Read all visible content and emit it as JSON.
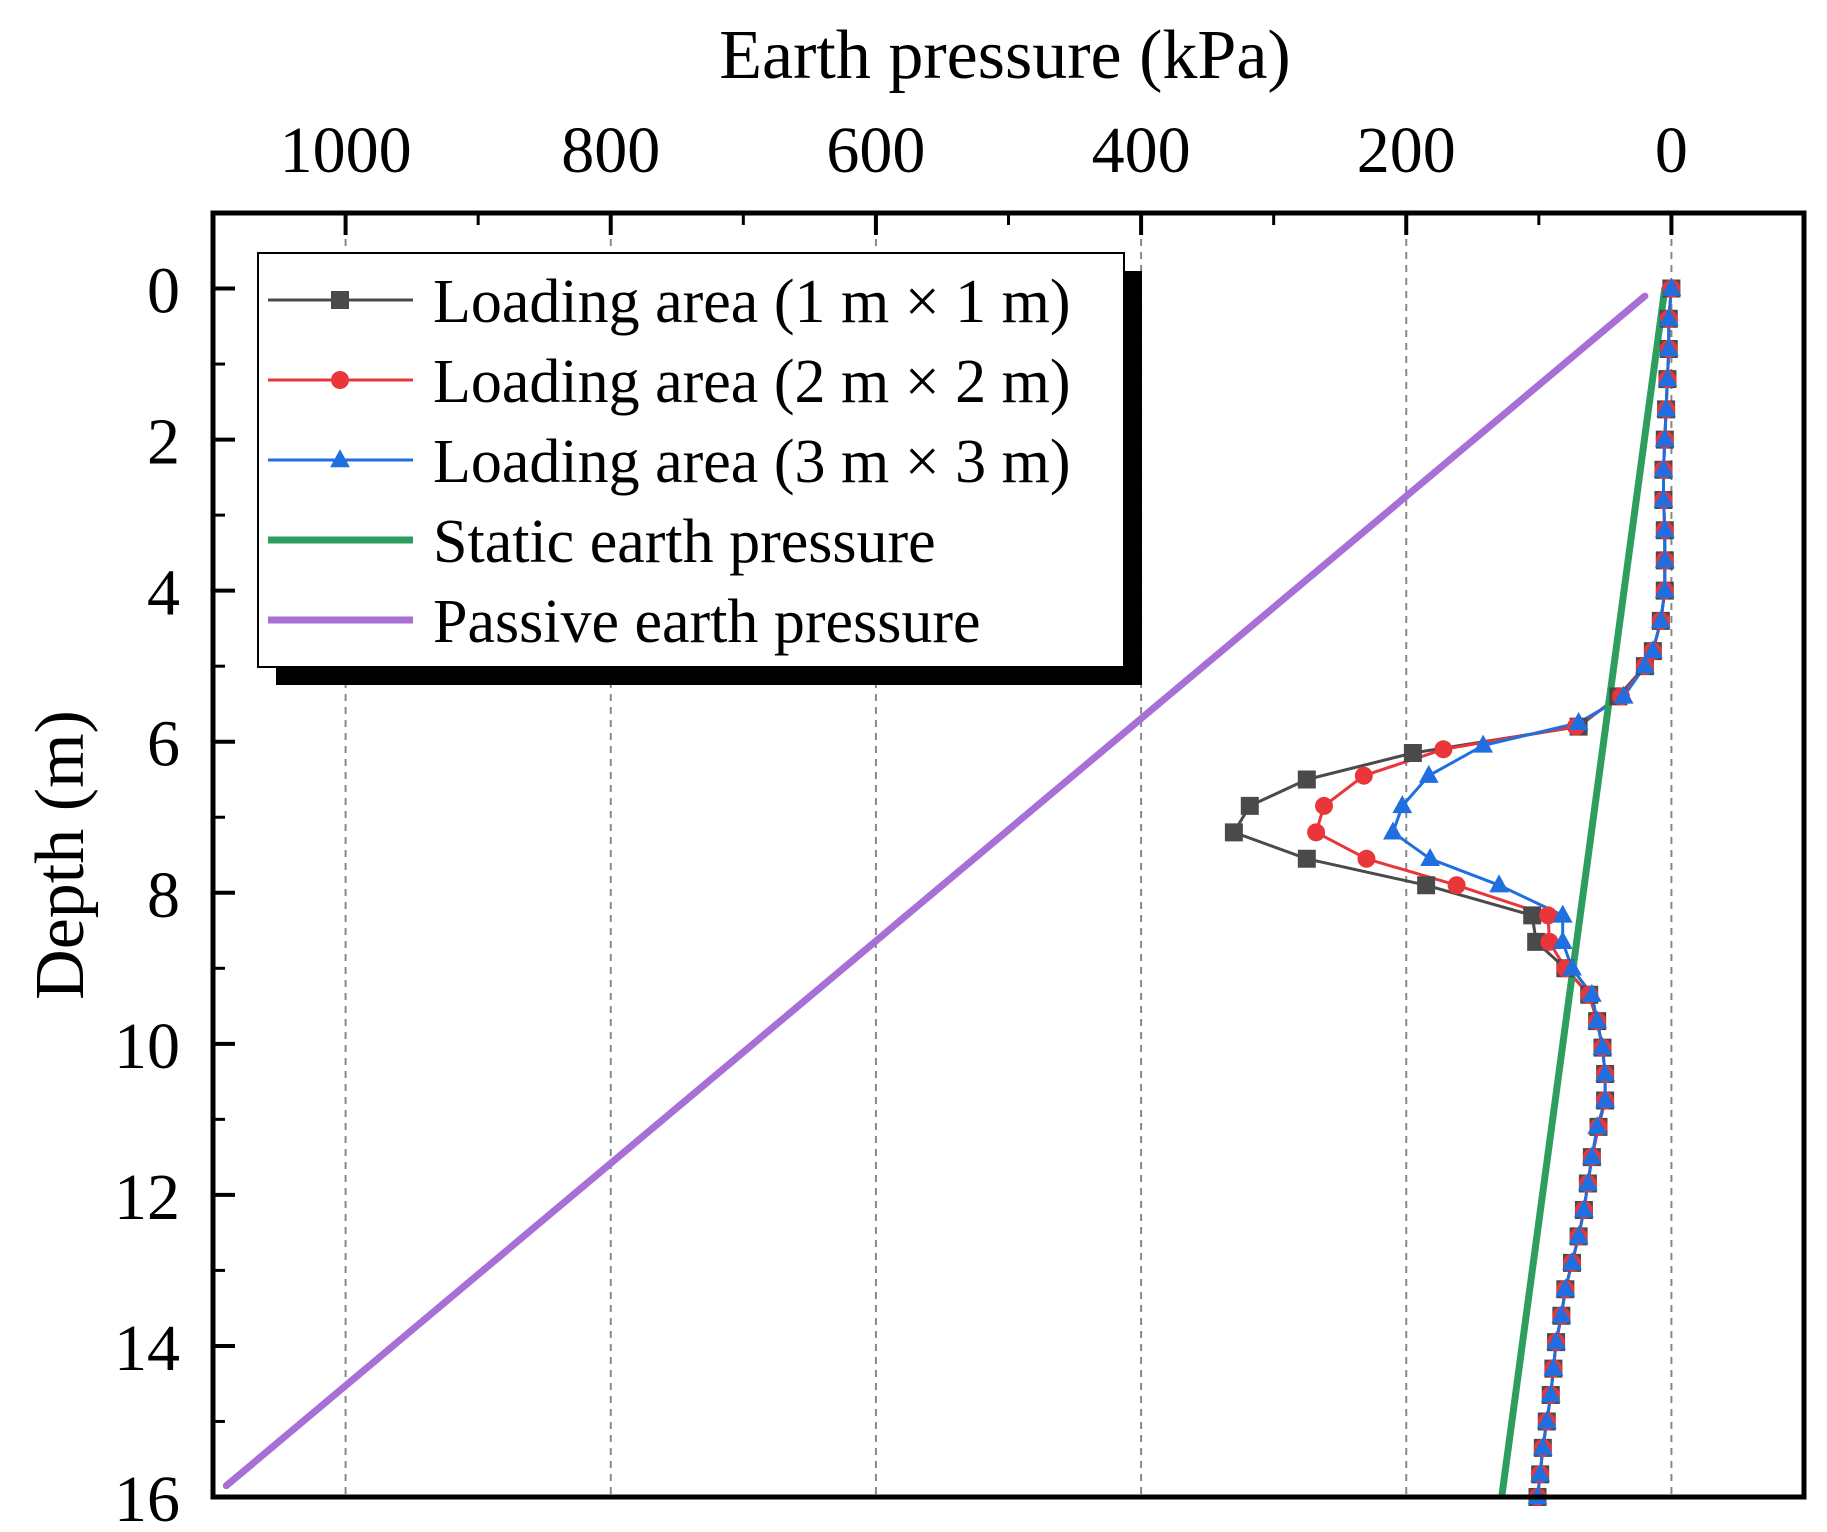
{
  "chart_data": {
    "type": "line",
    "title": "",
    "xlabel": "Earth pressure (kPa)",
    "ylabel": "Depth (m)",
    "xlim": [
      -100,
      1100
    ],
    "x_axis_reversed": true,
    "x_axis_position": "top",
    "ylim": [
      -1.0,
      16
    ],
    "y_axis_reversed": true,
    "x_ticks": [
      1000,
      800,
      600,
      400,
      200,
      0
    ],
    "x_tick_labels": [
      "1000",
      "800",
      "600",
      "400",
      "200",
      "0"
    ],
    "y_ticks": [
      0,
      2,
      4,
      6,
      8,
      10,
      12,
      14,
      16
    ],
    "y_tick_labels": [
      "0",
      "2",
      "4",
      "6",
      "8",
      "10",
      "12",
      "14",
      "16"
    ],
    "grid": "vertical dashed at x ticks",
    "legend_position": "top-left",
    "series": [
      {
        "name": "Loading area (1 m × 1 m)",
        "color": "#4a4a4a",
        "marker": "square",
        "points": [
          [
            0,
            0
          ],
          [
            2,
            0.4
          ],
          [
            2,
            0.8
          ],
          [
            3,
            1.2
          ],
          [
            4,
            1.6
          ],
          [
            5,
            2.0
          ],
          [
            6,
            2.4
          ],
          [
            6,
            2.8
          ],
          [
            5,
            3.2
          ],
          [
            5,
            3.6
          ],
          [
            5,
            4.0
          ],
          [
            8,
            4.4
          ],
          [
            14,
            4.8
          ],
          [
            20,
            5.0
          ],
          [
            40,
            5.4
          ],
          [
            70,
            5.8
          ],
          [
            195,
            6.15
          ],
          [
            275,
            6.5
          ],
          [
            318,
            6.85
          ],
          [
            330,
            7.2
          ],
          [
            275,
            7.55
          ],
          [
            185,
            7.9
          ],
          [
            105,
            8.3
          ],
          [
            102,
            8.65
          ],
          [
            80,
            9.0
          ],
          [
            62,
            9.35
          ],
          [
            56,
            9.7
          ],
          [
            52,
            10.05
          ],
          [
            50,
            10.4
          ],
          [
            50,
            10.75
          ],
          [
            55,
            11.1
          ],
          [
            60,
            11.5
          ],
          [
            63,
            11.85
          ],
          [
            66,
            12.2
          ],
          [
            70,
            12.55
          ],
          [
            75,
            12.9
          ],
          [
            80,
            13.25
          ],
          [
            83,
            13.6
          ],
          [
            87,
            13.95
          ],
          [
            89,
            14.3
          ],
          [
            91,
            14.65
          ],
          [
            94,
            15.0
          ],
          [
            97,
            15.35
          ],
          [
            99,
            15.7
          ],
          [
            101,
            16.0
          ]
        ]
      },
      {
        "name": "Loading area (2 m × 2 m)",
        "color": "#e8363a",
        "marker": "circle",
        "points": [
          [
            0,
            0
          ],
          [
            2,
            0.4
          ],
          [
            2,
            0.8
          ],
          [
            3,
            1.2
          ],
          [
            4,
            1.6
          ],
          [
            5,
            2.0
          ],
          [
            6,
            2.4
          ],
          [
            6,
            2.8
          ],
          [
            5,
            3.2
          ],
          [
            5,
            3.6
          ],
          [
            5,
            4.0
          ],
          [
            8,
            4.4
          ],
          [
            14,
            4.8
          ],
          [
            20,
            5.0
          ],
          [
            38,
            5.4
          ],
          [
            72,
            5.8
          ],
          [
            172,
            6.1
          ],
          [
            232,
            6.45
          ],
          [
            262,
            6.85
          ],
          [
            268,
            7.2
          ],
          [
            230,
            7.55
          ],
          [
            162,
            7.9
          ],
          [
            93,
            8.3
          ],
          [
            92,
            8.65
          ],
          [
            80,
            9.0
          ],
          [
            62,
            9.35
          ],
          [
            56,
            9.7
          ],
          [
            52,
            10.05
          ],
          [
            50,
            10.4
          ],
          [
            50,
            10.75
          ],
          [
            55,
            11.1
          ],
          [
            60,
            11.5
          ],
          [
            63,
            11.85
          ],
          [
            66,
            12.2
          ],
          [
            70,
            12.55
          ],
          [
            75,
            12.9
          ],
          [
            80,
            13.25
          ],
          [
            83,
            13.6
          ],
          [
            87,
            13.95
          ],
          [
            89,
            14.3
          ],
          [
            91,
            14.65
          ],
          [
            94,
            15.0
          ],
          [
            97,
            15.35
          ],
          [
            99,
            15.7
          ],
          [
            101,
            16.0
          ]
        ]
      },
      {
        "name": "Loading area (3 m × 3 m)",
        "color": "#1f6fe0",
        "marker": "triangle",
        "points": [
          [
            0,
            0
          ],
          [
            2,
            0.4
          ],
          [
            2,
            0.8
          ],
          [
            3,
            1.2
          ],
          [
            4,
            1.6
          ],
          [
            5,
            2.0
          ],
          [
            6,
            2.4
          ],
          [
            6,
            2.8
          ],
          [
            5,
            3.2
          ],
          [
            5,
            3.6
          ],
          [
            5,
            4.0
          ],
          [
            8,
            4.4
          ],
          [
            14,
            4.8
          ],
          [
            20,
            5.0
          ],
          [
            36,
            5.4
          ],
          [
            70,
            5.75
          ],
          [
            142,
            6.05
          ],
          [
            183,
            6.45
          ],
          [
            203,
            6.85
          ],
          [
            210,
            7.2
          ],
          [
            182,
            7.55
          ],
          [
            130,
            7.9
          ],
          [
            82,
            8.3
          ],
          [
            82,
            8.65
          ],
          [
            75,
            9.0
          ],
          [
            60,
            9.35
          ],
          [
            56,
            9.7
          ],
          [
            52,
            10.05
          ],
          [
            50,
            10.4
          ],
          [
            50,
            10.75
          ],
          [
            56,
            11.1
          ],
          [
            60,
            11.5
          ],
          [
            63,
            11.85
          ],
          [
            66,
            12.2
          ],
          [
            70,
            12.55
          ],
          [
            75,
            12.9
          ],
          [
            80,
            13.25
          ],
          [
            83,
            13.6
          ],
          [
            87,
            13.95
          ],
          [
            89,
            14.3
          ],
          [
            91,
            14.65
          ],
          [
            94,
            15.0
          ],
          [
            97,
            15.35
          ],
          [
            99,
            15.7
          ],
          [
            101,
            16.0
          ]
        ]
      },
      {
        "name": "Static earth pressure",
        "color": "#2e9e5e",
        "marker": "none",
        "points": [
          [
            5,
            0
          ],
          [
            128,
            16
          ]
        ]
      },
      {
        "name": "Passive earth pressure",
        "color": "#a86fd6",
        "marker": "none",
        "points": [
          [
            20,
            0.1
          ],
          [
            1090,
            15.85
          ]
        ]
      }
    ]
  }
}
